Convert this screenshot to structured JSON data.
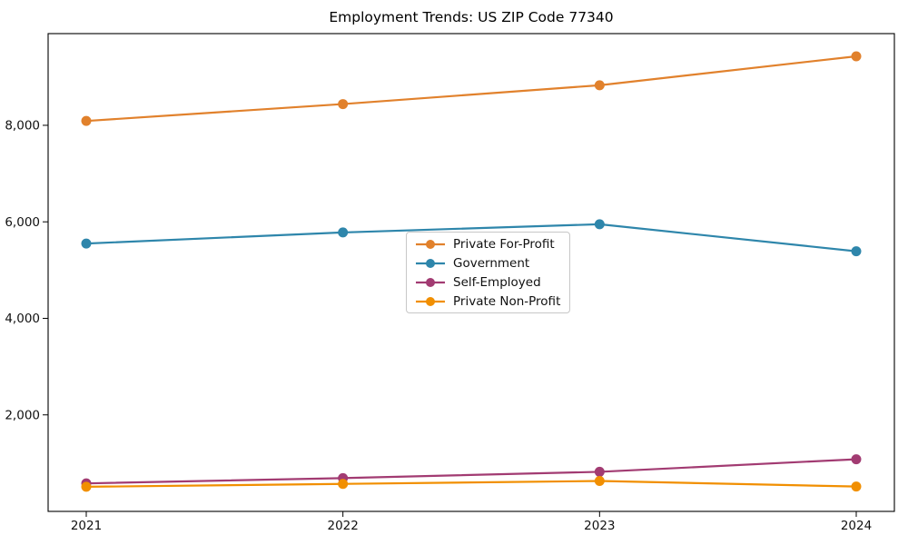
{
  "chart_data": {
    "type": "line",
    "title": "Employment Trends: US ZIP Code 77340",
    "xlabel": "",
    "ylabel": "",
    "x": [
      "2021",
      "2022",
      "2023",
      "2024"
    ],
    "series": [
      {
        "name": "Private For-Profit",
        "color": "#E1812C",
        "values": [
          8090,
          8440,
          8830,
          9430
        ]
      },
      {
        "name": "Government",
        "color": "#2E86AB",
        "values": [
          5550,
          5780,
          5950,
          5390
        ]
      },
      {
        "name": "Self-Employed",
        "color": "#A23B72",
        "values": [
          580,
          690,
          820,
          1080
        ]
      },
      {
        "name": "Private Non-Profit",
        "color": "#F18F01",
        "values": [
          510,
          570,
          630,
          515
        ]
      }
    ],
    "yticks": [
      2000,
      4000,
      6000,
      8000
    ],
    "ytick_labels": [
      "2,000",
      "4,000",
      "6,000",
      "8,000"
    ],
    "ylim": [
      0,
      9900
    ],
    "grid": false,
    "marker": "o",
    "legend_position": "center"
  }
}
